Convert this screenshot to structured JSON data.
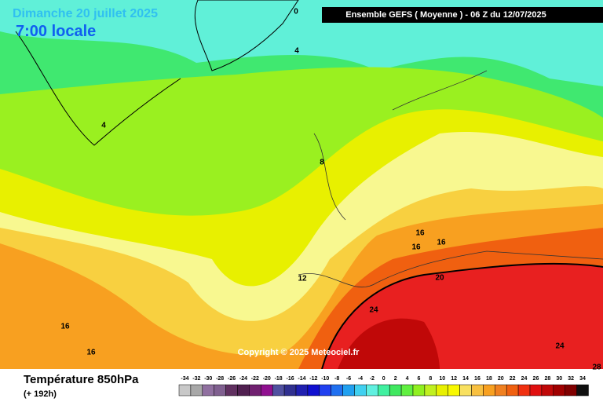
{
  "header": {
    "date": "Dimanche 20 juillet 2025",
    "time": "7:00 locale",
    "run": "Ensemble GEFS  ( Moyenne )  -  06 Z du 12/07/2025"
  },
  "contour_labels": [
    0,
    4,
    4,
    8,
    12,
    16,
    16,
    16,
    16,
    16,
    20,
    24,
    24,
    28
  ],
  "copyright": "Copyright © 2025 Meteociel.fr",
  "footer": {
    "title": "Température 850hPa",
    "lead": "(+ 192h)"
  },
  "legend": {
    "ticks": [
      -34,
      -32,
      -30,
      -28,
      -26,
      -24,
      -22,
      -20,
      -18,
      -16,
      -14,
      -12,
      -10,
      -8,
      -6,
      -4,
      -2,
      0,
      2,
      4,
      6,
      8,
      10,
      12,
      14,
      16,
      18,
      20,
      22,
      24,
      26,
      28,
      30,
      32,
      34
    ],
    "colors": [
      "#c8c8c8",
      "#a8a8a8",
      "#9070a0",
      "#806090",
      "#603060",
      "#502050",
      "#702070",
      "#901090",
      "#5050a0",
      "#303090",
      "#2020b0",
      "#1010d0",
      "#2040f0",
      "#2070f0",
      "#20a0f0",
      "#40d0f0",
      "#60f0e0",
      "#40f0a0",
      "#40e860",
      "#60f040",
      "#90f020",
      "#c0f020",
      "#e8f000",
      "#f8f800",
      "#f8e060",
      "#f8c040",
      "#f8a020",
      "#f08020",
      "#f06010",
      "#f03010",
      "#e01010",
      "#c00808",
      "#a00000",
      "#800000",
      "#101010"
    ]
  }
}
